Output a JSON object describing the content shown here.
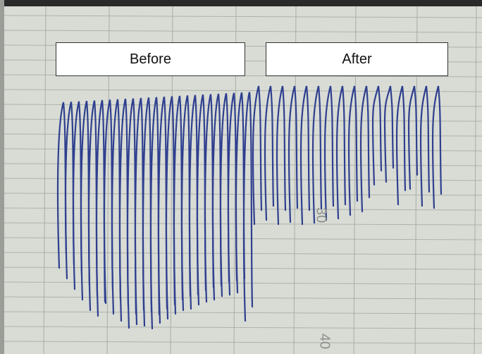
{
  "labels": {
    "before": "Before",
    "after": "After"
  },
  "paper_marks": [
    "30",
    "40"
  ]
}
